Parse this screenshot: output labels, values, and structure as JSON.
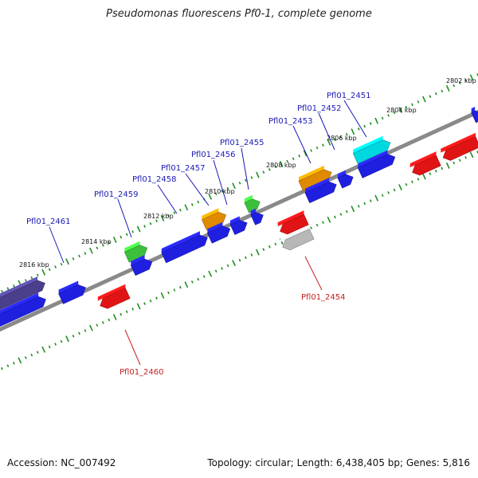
{
  "title": "Pseudomonas fluorescens Pf0-1, complete genome",
  "accession_text": "Accession: NC_007492",
  "summary_text": "Topology: circular; Length: 6,438,405 bp; Genes: 5,816",
  "colors": {
    "forward_gene": "#1f1fe0",
    "reverse_gene": "#e01414",
    "backbone": "#8a8a8a",
    "ticks": "#1f8f1f",
    "forward_label": "#1a1ab5",
    "reverse_label": "#c81e1e"
  },
  "scale": {
    "unit": "kbp",
    "tick_labels": [
      "2802 kbp",
      "2804 kbp",
      "2806 kbp",
      "2808 kbp",
      "2810 kbp",
      "2812 kbp",
      "2814 kbp",
      "2816 kbp"
    ]
  },
  "labeled_genes": [
    {
      "name": "Pfl01_2451",
      "strand": "+",
      "color": "#00d8e0"
    },
    {
      "name": "Pfl01_2452",
      "strand": "+",
      "color": "#1f1fe0"
    },
    {
      "name": "Pfl01_2453",
      "strand": "+",
      "color": "#e08a00"
    },
    {
      "name": "Pfl01_2454",
      "strand": "-",
      "color": "#b8b8b8"
    },
    {
      "name": "Pfl01_2455",
      "strand": "+",
      "color": "#3cc03c"
    },
    {
      "name": "Pfl01_2456",
      "strand": "+",
      "color": "#1f1fe0"
    },
    {
      "name": "Pfl01_2457",
      "strand": "+",
      "color": "#e08a00"
    },
    {
      "name": "Pfl01_2458",
      "strand": "+",
      "color": "#1f1fe0"
    },
    {
      "name": "Pfl01_2459",
      "strand": "+",
      "color": "#3cc03c"
    },
    {
      "name": "Pfl01_2460",
      "strand": "-",
      "color": "#e01414"
    },
    {
      "name": "Pfl01_2461",
      "strand": "+",
      "color": "#1f1fe0"
    }
  ]
}
